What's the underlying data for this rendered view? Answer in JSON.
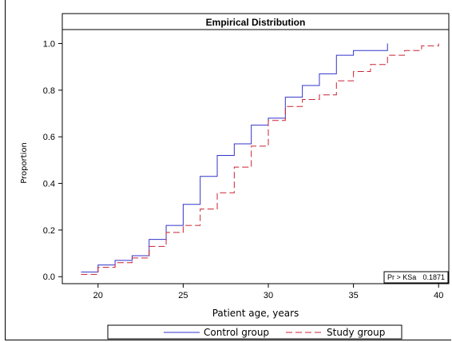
{
  "chart_data": {
    "type": "line",
    "title": "Empirical Distribution",
    "xlabel": "Patient age, years",
    "ylabel": "Proportion",
    "xlim": [
      17.9,
      40.6
    ],
    "ylim": [
      -0.03,
      1.06
    ],
    "xticks": [
      20,
      25,
      30,
      35,
      40
    ],
    "yticks": [
      0.0,
      0.2,
      0.4,
      0.6,
      0.8,
      1.0
    ],
    "ytick_labels": [
      "0.0",
      "0.2",
      "0.4",
      "0.6",
      "0.8",
      "1.0"
    ],
    "grid": false,
    "legend_position": "bottom",
    "stat_label": "Pr > KSa",
    "stat_value": "0.1871",
    "series": [
      {
        "name": "Control group",
        "color": "#3333cc",
        "style": "solid",
        "x": [
          19,
          20,
          21,
          22,
          23,
          24,
          25,
          26,
          27,
          28,
          29,
          30,
          31,
          32,
          33,
          34,
          35,
          37
        ],
        "y": [
          0.02,
          0.05,
          0.07,
          0.09,
          0.16,
          0.22,
          0.31,
          0.43,
          0.52,
          0.57,
          0.65,
          0.68,
          0.77,
          0.82,
          0.87,
          0.95,
          0.97,
          1.0
        ]
      },
      {
        "name": "Study group",
        "color": "#cc2233",
        "style": "dashed",
        "x": [
          19,
          20,
          21,
          22,
          23,
          24,
          25,
          26,
          27,
          28,
          29,
          30,
          31,
          32,
          33,
          34,
          35,
          36,
          37,
          38,
          39,
          40
        ],
        "y": [
          0.01,
          0.04,
          0.06,
          0.08,
          0.13,
          0.19,
          0.22,
          0.29,
          0.36,
          0.47,
          0.56,
          0.67,
          0.73,
          0.76,
          0.78,
          0.84,
          0.88,
          0.91,
          0.95,
          0.97,
          0.99,
          1.0
        ]
      }
    ]
  }
}
